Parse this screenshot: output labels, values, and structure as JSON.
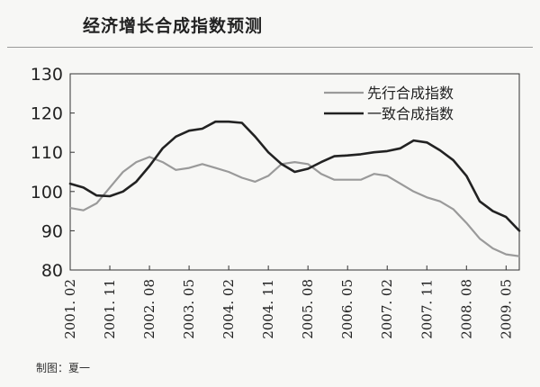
{
  "chart_data": {
    "type": "line",
    "title": "经济增长合成指数预测",
    "xlabel": "",
    "ylabel": "",
    "ylim": [
      80,
      130
    ],
    "yticks": [
      80,
      90,
      100,
      110,
      120,
      130
    ],
    "xlim": [
      0,
      102
    ],
    "xticks": [
      {
        "label": "2001. 02",
        "i": 0
      },
      {
        "label": "2001. 11",
        "i": 9
      },
      {
        "label": "2002. 08",
        "i": 18
      },
      {
        "label": "2003. 05",
        "i": 27
      },
      {
        "label": "2004. 02",
        "i": 36
      },
      {
        "label": "2004. 11",
        "i": 45
      },
      {
        "label": "2005. 08",
        "i": 54
      },
      {
        "label": "2006. 05",
        "i": 63
      },
      {
        "label": "2007. 02",
        "i": 72
      },
      {
        "label": "2007. 11",
        "i": 81
      },
      {
        "label": "2008. 08",
        "i": 90
      },
      {
        "label": "2009. 05",
        "i": 99
      }
    ],
    "grid": false,
    "legend_position": "top-right",
    "series": [
      {
        "name": "先行合成指数",
        "color": "#9a9a9a",
        "points": [
          [
            0,
            95.8
          ],
          [
            3,
            95.2
          ],
          [
            6,
            97
          ],
          [
            9,
            101
          ],
          [
            12,
            105
          ],
          [
            15,
            107.5
          ],
          [
            18,
            108.8
          ],
          [
            21,
            107.5
          ],
          [
            24,
            105.5
          ],
          [
            27,
            106
          ],
          [
            30,
            107
          ],
          [
            33,
            106
          ],
          [
            36,
            105
          ],
          [
            39,
            103.5
          ],
          [
            42,
            102.5
          ],
          [
            45,
            104
          ],
          [
            48,
            107
          ],
          [
            51,
            107.5
          ],
          [
            54,
            107
          ],
          [
            57,
            104.5
          ],
          [
            60,
            103
          ],
          [
            63,
            103
          ],
          [
            66,
            103
          ],
          [
            69,
            104.5
          ],
          [
            72,
            104
          ],
          [
            75,
            102
          ],
          [
            78,
            100
          ],
          [
            81,
            98.5
          ],
          [
            84,
            97.5
          ],
          [
            87,
            95.5
          ],
          [
            90,
            92
          ],
          [
            93,
            88
          ],
          [
            96,
            85.5
          ],
          [
            99,
            84
          ],
          [
            102,
            83.5
          ]
        ]
      },
      {
        "name": "一致合成指数",
        "color": "#222222",
        "points": [
          [
            0,
            102
          ],
          [
            3,
            101
          ],
          [
            6,
            99
          ],
          [
            9,
            98.8
          ],
          [
            12,
            100
          ],
          [
            15,
            102.5
          ],
          [
            18,
            106.5
          ],
          [
            21,
            111
          ],
          [
            24,
            114
          ],
          [
            27,
            115.5
          ],
          [
            30,
            116
          ],
          [
            33,
            117.8
          ],
          [
            36,
            117.8
          ],
          [
            39,
            117.5
          ],
          [
            42,
            114
          ],
          [
            45,
            110
          ],
          [
            48,
            107
          ],
          [
            51,
            105
          ],
          [
            54,
            105.8
          ],
          [
            57,
            107.5
          ],
          [
            60,
            109
          ],
          [
            63,
            109.2
          ],
          [
            66,
            109.5
          ],
          [
            69,
            110
          ],
          [
            72,
            110.3
          ],
          [
            75,
            111
          ],
          [
            78,
            113
          ],
          [
            81,
            112.5
          ],
          [
            84,
            110.5
          ],
          [
            87,
            108
          ],
          [
            90,
            104
          ],
          [
            93,
            97.5
          ],
          [
            96,
            95
          ],
          [
            99,
            93.5
          ],
          [
            102,
            90
          ]
        ]
      }
    ]
  },
  "credit": "制图：夏一"
}
